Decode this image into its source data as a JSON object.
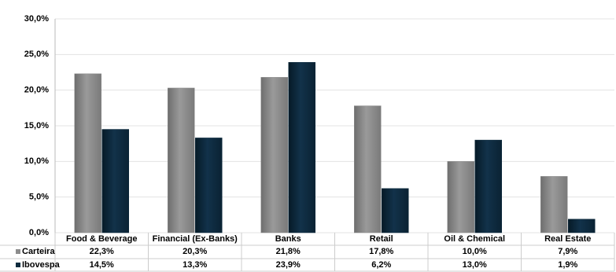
{
  "chart_data": {
    "type": "bar",
    "categories": [
      "Food & Beverage",
      "Financial (Ex-Banks)",
      "Banks",
      "Retail",
      "Oil & Chemical",
      "Real Estate"
    ],
    "series": [
      {
        "name": "Carteira",
        "color": "#8c8c8c",
        "values": [
          22.3,
          20.3,
          21.8,
          17.8,
          10.0,
          7.9
        ],
        "value_labels": [
          "22,3%",
          "20,3%",
          "21,8%",
          "17,8%",
          "10,0%",
          "7,9%"
        ]
      },
      {
        "name": "Ibovespa",
        "color": "#0d2b3e",
        "values": [
          14.5,
          13.3,
          23.9,
          6.2,
          13.0,
          1.9
        ],
        "value_labels": [
          "14,5%",
          "13,3%",
          "23,9%",
          "6,2%",
          "13,0%",
          "1,9%"
        ]
      }
    ],
    "ylim": [
      0,
      30
    ],
    "yticks": [
      {
        "value": 0,
        "label": "0,0%"
      },
      {
        "value": 5,
        "label": "5,0%"
      },
      {
        "value": 10,
        "label": "10,0%"
      },
      {
        "value": 15,
        "label": "15,0%"
      },
      {
        "value": 20,
        "label": "20,0%"
      },
      {
        "value": 25,
        "label": "25,0%"
      },
      {
        "value": 30,
        "label": "30,0%"
      }
    ],
    "grid": true
  }
}
